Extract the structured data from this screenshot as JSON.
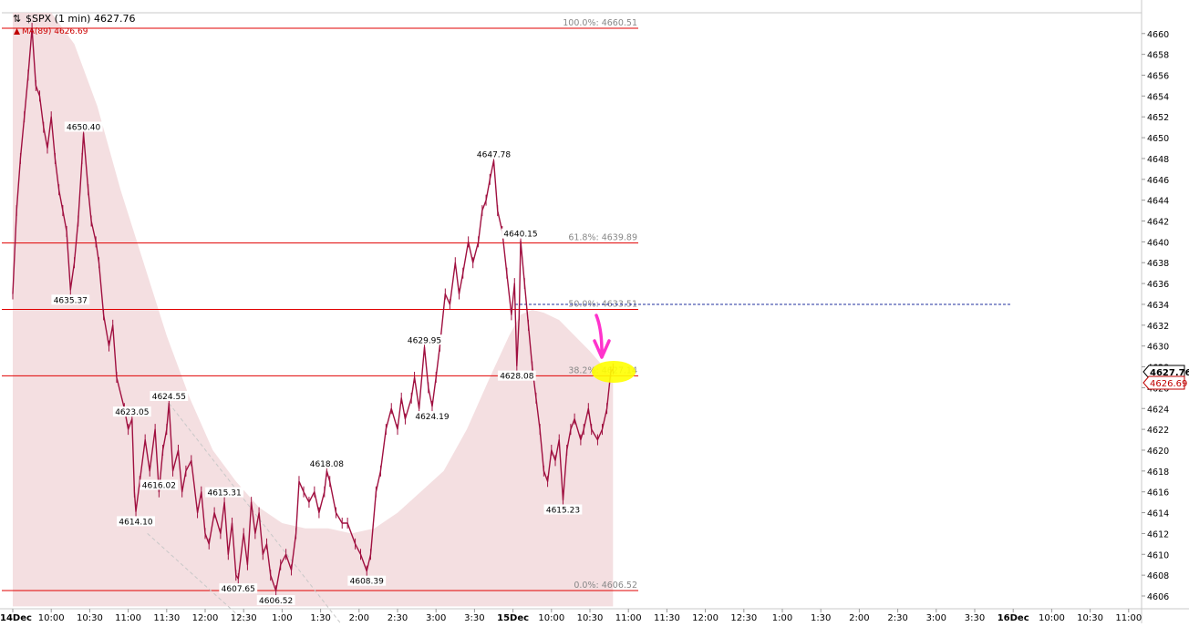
{
  "colors": {
    "price": "#a01040",
    "ma_fill": "#f3dcde",
    "fib_line": "#e00000",
    "dashed_line": "#1f2f9f",
    "arrow": "#ff33cc",
    "highlight": "#ffff00"
  },
  "chart_data": {
    "type": "line",
    "title": "$SPX (1 min) 4627.76",
    "ma_label": "MA(89) 4626.69",
    "ylim": [
      4605,
      4662.5
    ],
    "x_scale": "session-time",
    "grid": false,
    "y_ticks": [
      4606,
      4608,
      4610,
      4612,
      4614,
      4616,
      4618,
      4620,
      4622,
      4624,
      4626,
      4628,
      4630,
      4632,
      4634,
      4636,
      4638,
      4640,
      4642,
      4644,
      4646,
      4648,
      4650,
      4652,
      4654,
      4656,
      4658,
      4660
    ],
    "x_ticks": [
      {
        "t": 0,
        "label": "14Dec",
        "bold": true
      },
      {
        "t": 0.5,
        "label": "10:00"
      },
      {
        "t": 1.0,
        "label": "10:30"
      },
      {
        "t": 1.5,
        "label": "11:00"
      },
      {
        "t": 2.0,
        "label": "11:30"
      },
      {
        "t": 2.5,
        "label": "12:00"
      },
      {
        "t": 3.0,
        "label": "12:30"
      },
      {
        "t": 3.5,
        "label": "1:00"
      },
      {
        "t": 4.0,
        "label": "1:30"
      },
      {
        "t": 4.5,
        "label": "2:00"
      },
      {
        "t": 5.0,
        "label": "2:30"
      },
      {
        "t": 5.5,
        "label": "3:00"
      },
      {
        "t": 6.0,
        "label": "3:30"
      },
      {
        "t": 6.5,
        "label": "15Dec",
        "bold": true
      },
      {
        "t": 7.0,
        "label": "10:00"
      },
      {
        "t": 7.5,
        "label": "10:30"
      },
      {
        "t": 8.0,
        "label": "11:00"
      },
      {
        "t": 8.5,
        "label": "11:30"
      },
      {
        "t": 9.0,
        "label": "12:00"
      },
      {
        "t": 9.5,
        "label": "12:30"
      },
      {
        "t": 10.0,
        "label": "1:00"
      },
      {
        "t": 10.5,
        "label": "1:30"
      },
      {
        "t": 11.0,
        "label": "2:00"
      },
      {
        "t": 11.5,
        "label": "2:30"
      },
      {
        "t": 12.0,
        "label": "3:00"
      },
      {
        "t": 12.5,
        "label": "3:30"
      },
      {
        "t": 13.0,
        "label": "16Dec",
        "bold": true
      },
      {
        "t": 13.5,
        "label": "10:00"
      },
      {
        "t": 14.0,
        "label": "10:30"
      },
      {
        "t": 14.5,
        "label": "11:00"
      }
    ],
    "fib_levels": [
      {
        "label": "100.0%: 4660.51",
        "value": 4660.51
      },
      {
        "label": "61.8%: 4639.89",
        "value": 4639.89
      },
      {
        "label": "50.0%: 4633.51",
        "value": 4633.51
      },
      {
        "label": "38.2%: 4627.14",
        "value": 4627.14
      },
      {
        "label": "0.0%: 4606.52",
        "value": 4606.52
      }
    ],
    "dashed_level": 4634.0,
    "last_price": "4627.76",
    "last_ma": "4626.69",
    "annotations": [
      {
        "label": "4650.40",
        "t": 0.92,
        "value": 4650.4,
        "pos": "above"
      },
      {
        "label": "4635.37",
        "t": 0.75,
        "value": 4635.37,
        "pos": "below"
      },
      {
        "label": "4623.05",
        "t": 1.55,
        "value": 4623.05,
        "pos": "above"
      },
      {
        "label": "4624.55",
        "t": 2.03,
        "value": 4624.55,
        "pos": "above"
      },
      {
        "label": "4614.10",
        "t": 1.6,
        "value": 4614.1,
        "pos": "below"
      },
      {
        "label": "4616.02",
        "t": 1.9,
        "value": 4616.02,
        "pos": "above"
      },
      {
        "label": "4615.31",
        "t": 2.75,
        "value": 4615.31,
        "pos": "above"
      },
      {
        "label": "4607.65",
        "t": 2.93,
        "value": 4607.65,
        "pos": "below"
      },
      {
        "label": "4606.52",
        "t": 3.42,
        "value": 4606.52,
        "pos": "below"
      },
      {
        "label": "4618.08",
        "t": 4.08,
        "value": 4618.08,
        "pos": "above"
      },
      {
        "label": "4608.39",
        "t": 4.6,
        "value": 4608.39,
        "pos": "below"
      },
      {
        "label": "4629.95",
        "t": 5.35,
        "value": 4629.95,
        "pos": "above"
      },
      {
        "label": "4624.19",
        "t": 5.45,
        "value": 4624.19,
        "pos": "below"
      },
      {
        "label": "4647.78",
        "t": 6.25,
        "value": 4647.78,
        "pos": "above"
      },
      {
        "label": "4640.15",
        "t": 6.6,
        "value": 4640.15,
        "pos": "above"
      },
      {
        "label": "4628.08",
        "t": 6.55,
        "value": 4628.08,
        "pos": "below"
      },
      {
        "label": "4615.23",
        "t": 7.15,
        "value": 4615.23,
        "pos": "below"
      }
    ],
    "series": [
      {
        "points": [
          [
            0.0,
            4635
          ],
          [
            0.05,
            4643
          ],
          [
            0.1,
            4648
          ],
          [
            0.15,
            4652
          ],
          [
            0.2,
            4656
          ],
          [
            0.25,
            4660.5
          ],
          [
            0.3,
            4655
          ],
          [
            0.35,
            4654
          ],
          [
            0.4,
            4651
          ],
          [
            0.45,
            4649
          ],
          [
            0.5,
            4652
          ],
          [
            0.55,
            4648
          ],
          [
            0.6,
            4645
          ],
          [
            0.65,
            4643
          ],
          [
            0.7,
            4641
          ],
          [
            0.75,
            4635.4
          ],
          [
            0.8,
            4638
          ],
          [
            0.85,
            4642
          ],
          [
            0.9,
            4648
          ],
          [
            0.92,
            4650.4
          ],
          [
            0.98,
            4645
          ],
          [
            1.02,
            4642
          ],
          [
            1.08,
            4640
          ],
          [
            1.12,
            4638
          ],
          [
            1.18,
            4633
          ],
          [
            1.25,
            4630
          ],
          [
            1.3,
            4632
          ],
          [
            1.35,
            4627
          ],
          [
            1.45,
            4624
          ],
          [
            1.5,
            4622
          ],
          [
            1.55,
            4623
          ],
          [
            1.58,
            4616
          ],
          [
            1.6,
            4614.1
          ],
          [
            1.65,
            4617
          ],
          [
            1.72,
            4621
          ],
          [
            1.78,
            4618
          ],
          [
            1.85,
            4622
          ],
          [
            1.9,
            4616
          ],
          [
            1.95,
            4620
          ],
          [
            2.0,
            4622
          ],
          [
            2.03,
            4624.5
          ],
          [
            2.08,
            4618
          ],
          [
            2.15,
            4620
          ],
          [
            2.2,
            4616
          ],
          [
            2.25,
            4618
          ],
          [
            2.32,
            4619
          ],
          [
            2.4,
            4614
          ],
          [
            2.45,
            4616
          ],
          [
            2.5,
            4612
          ],
          [
            2.55,
            4611
          ],
          [
            2.62,
            4614
          ],
          [
            2.7,
            4612
          ],
          [
            2.75,
            4615
          ],
          [
            2.8,
            4610
          ],
          [
            2.85,
            4613
          ],
          [
            2.9,
            4608
          ],
          [
            2.93,
            4607.65
          ],
          [
            3.0,
            4612
          ],
          [
            3.05,
            4609
          ],
          [
            3.1,
            4615
          ],
          [
            3.15,
            4612
          ],
          [
            3.2,
            4614
          ],
          [
            3.25,
            4610
          ],
          [
            3.3,
            4611
          ],
          [
            3.35,
            4608
          ],
          [
            3.42,
            4606.5
          ],
          [
            3.48,
            4609
          ],
          [
            3.55,
            4610
          ],
          [
            3.62,
            4608.5
          ],
          [
            3.68,
            4612
          ],
          [
            3.72,
            4617
          ],
          [
            3.78,
            4616
          ],
          [
            3.85,
            4615
          ],
          [
            3.92,
            4616
          ],
          [
            3.98,
            4614
          ],
          [
            4.05,
            4616
          ],
          [
            4.08,
            4618
          ],
          [
            4.12,
            4617
          ],
          [
            4.2,
            4614
          ],
          [
            4.28,
            4613
          ],
          [
            4.35,
            4613
          ],
          [
            4.45,
            4611
          ],
          [
            4.52,
            4610
          ],
          [
            4.6,
            4608.4
          ],
          [
            4.65,
            4610
          ],
          [
            4.72,
            4616
          ],
          [
            4.78,
            4618
          ],
          [
            4.85,
            4622
          ],
          [
            4.92,
            4624
          ],
          [
            5.0,
            4622
          ],
          [
            5.05,
            4625
          ],
          [
            5.1,
            4623
          ],
          [
            5.18,
            4625
          ],
          [
            5.22,
            4627
          ],
          [
            5.28,
            4624
          ],
          [
            5.35,
            4629.9
          ],
          [
            5.4,
            4626
          ],
          [
            5.45,
            4624.2
          ],
          [
            5.5,
            4627
          ],
          [
            5.55,
            4630
          ],
          [
            5.62,
            4635
          ],
          [
            5.68,
            4634
          ],
          [
            5.75,
            4638
          ],
          [
            5.8,
            4635
          ],
          [
            5.85,
            4637
          ],
          [
            5.92,
            4640
          ],
          [
            5.98,
            4638
          ],
          [
            6.05,
            4640
          ],
          [
            6.1,
            4643
          ],
          [
            6.15,
            4644
          ],
          [
            6.2,
            4646
          ],
          [
            6.25,
            4647.8
          ],
          [
            6.3,
            4643
          ],
          [
            6.36,
            4641
          ],
          [
            6.42,
            4637
          ],
          [
            6.48,
            4633
          ],
          [
            6.52,
            4636
          ],
          [
            6.55,
            4628.1
          ],
          [
            6.58,
            4633
          ],
          [
            6.6,
            4640.1
          ],
          [
            6.65,
            4636
          ],
          [
            6.7,
            4632
          ],
          [
            6.75,
            4628
          ],
          [
            6.8,
            4625
          ],
          [
            6.85,
            4622
          ],
          [
            6.9,
            4618
          ],
          [
            6.95,
            4617
          ],
          [
            7.0,
            4620
          ],
          [
            7.05,
            4619
          ],
          [
            7.1,
            4621
          ],
          [
            7.15,
            4615.2
          ],
          [
            7.2,
            4620
          ],
          [
            7.25,
            4622
          ],
          [
            7.3,
            4623
          ],
          [
            7.38,
            4621
          ],
          [
            7.42,
            4622
          ],
          [
            7.48,
            4624
          ],
          [
            7.52,
            4622
          ],
          [
            7.6,
            4621
          ],
          [
            7.66,
            4622
          ],
          [
            7.72,
            4624
          ],
          [
            7.77,
            4627.5
          ],
          [
            7.8,
            4627.8
          ]
        ]
      },
      {
        "name": "MA(89)",
        "points": [
          [
            0.0,
            4662
          ],
          [
            0.5,
            4662
          ],
          [
            0.8,
            4659
          ],
          [
            1.1,
            4653
          ],
          [
            1.4,
            4645
          ],
          [
            1.7,
            4638
          ],
          [
            2.0,
            4631
          ],
          [
            2.3,
            4625
          ],
          [
            2.6,
            4620
          ],
          [
            2.9,
            4617
          ],
          [
            3.2,
            4614.5
          ],
          [
            3.5,
            4613
          ],
          [
            3.8,
            4612.5
          ],
          [
            4.1,
            4612.5
          ],
          [
            4.4,
            4612
          ],
          [
            4.7,
            4612.5
          ],
          [
            5.0,
            4614
          ],
          [
            5.3,
            4616
          ],
          [
            5.6,
            4618
          ],
          [
            5.9,
            4622
          ],
          [
            6.2,
            4627
          ],
          [
            6.45,
            4631
          ],
          [
            6.6,
            4633
          ],
          [
            6.75,
            4633.5
          ],
          [
            6.9,
            4633.2
          ],
          [
            7.1,
            4632.5
          ],
          [
            7.3,
            4631
          ],
          [
            7.5,
            4629.5
          ],
          [
            7.7,
            4627.8
          ],
          [
            7.8,
            4626.7
          ]
        ]
      }
    ]
  }
}
